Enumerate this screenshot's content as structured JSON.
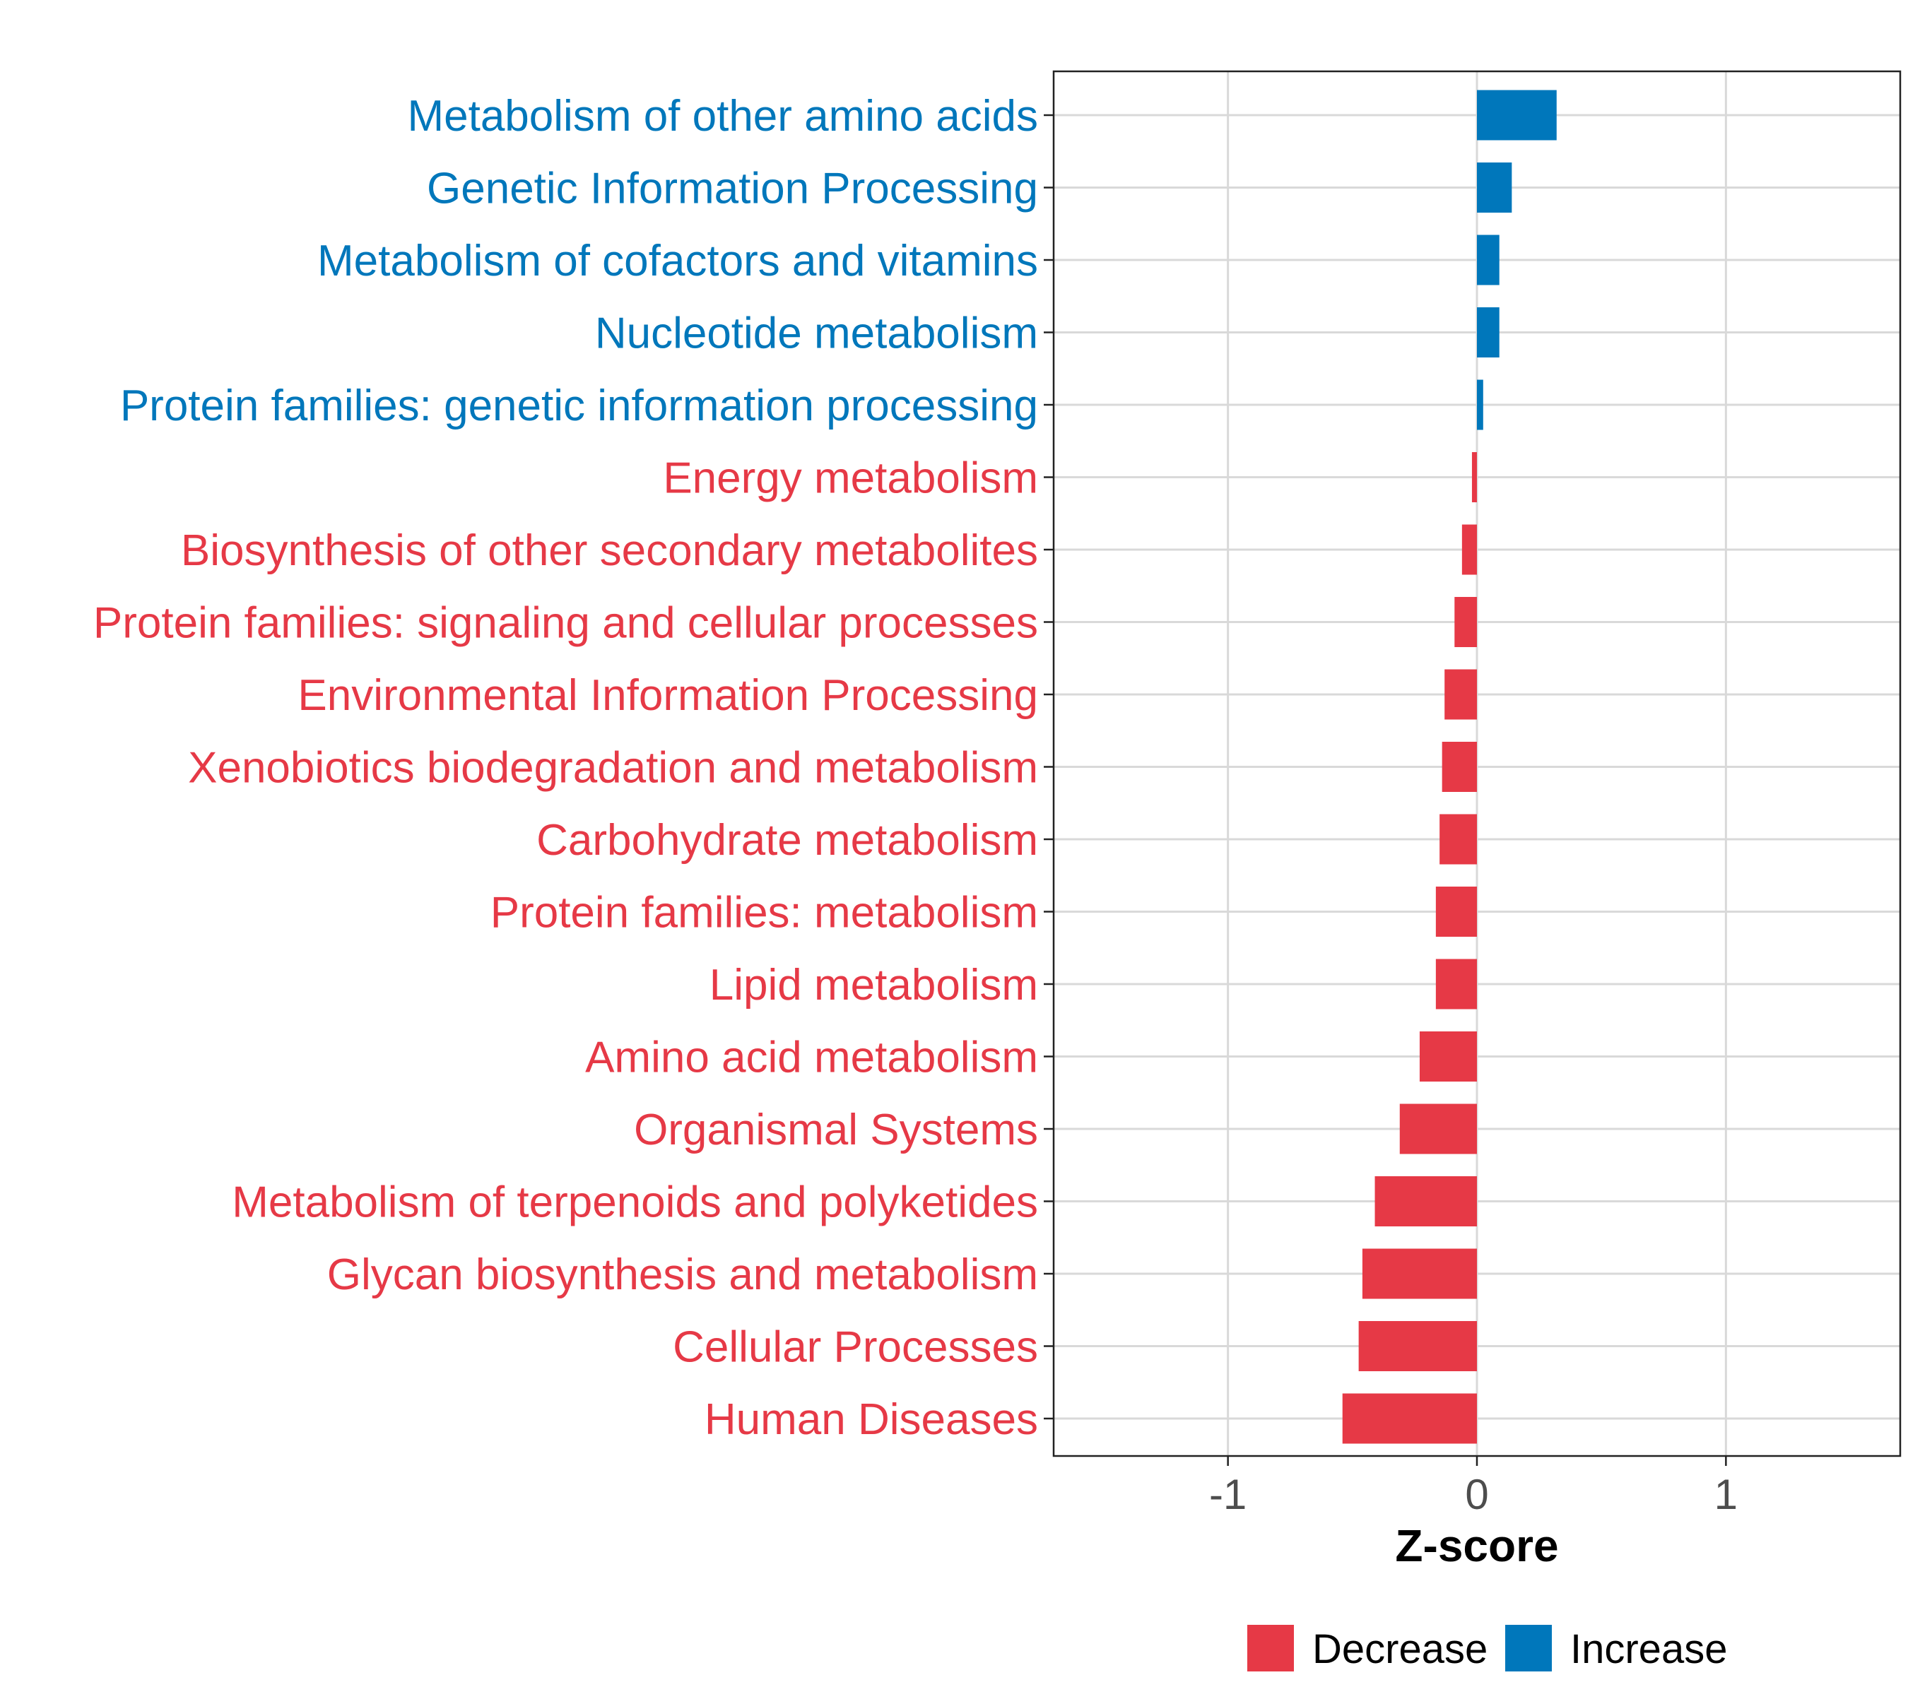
{
  "chart_data": {
    "type": "bar",
    "orientation": "horizontal",
    "xlabel": "Z-score",
    "ylabel": "",
    "xlim": [
      -1.7,
      1.7
    ],
    "xticks": [
      -1,
      0,
      1
    ],
    "xtick_labels": [
      "-1",
      "0",
      "1"
    ],
    "grid": true,
    "legend_position": "bottom",
    "categories": [
      "Metabolism of other amino acids",
      "Genetic Information Processing",
      "Metabolism of cofactors and vitamins",
      "Nucleotide metabolism",
      "Protein families: genetic information processing",
      "Energy metabolism",
      "Biosynthesis of other secondary metabolites",
      "Protein families: signaling and cellular processes",
      "Environmental Information Processing",
      "Xenobiotics biodegradation and metabolism",
      "Carbohydrate metabolism",
      "Protein families: metabolism",
      "Lipid metabolism",
      "Amino acid metabolism",
      "Organismal Systems",
      "Metabolism of terpenoids and polyketides",
      "Glycan biosynthesis and metabolism",
      "Cellular Processes",
      "Human Diseases"
    ],
    "values": [
      0.32,
      0.14,
      0.09,
      0.09,
      0.025,
      -0.02,
      -0.06,
      -0.09,
      -0.13,
      -0.14,
      -0.15,
      -0.165,
      -0.165,
      -0.23,
      -0.31,
      -0.41,
      -0.46,
      -0.475,
      -0.54
    ],
    "groups": [
      "Increase",
      "Increase",
      "Increase",
      "Increase",
      "Increase",
      "Decrease",
      "Decrease",
      "Decrease",
      "Decrease",
      "Decrease",
      "Decrease",
      "Decrease",
      "Decrease",
      "Decrease",
      "Decrease",
      "Decrease",
      "Decrease",
      "Decrease",
      "Decrease"
    ],
    "legend": [
      {
        "label": "Decrease",
        "color": "#e63946"
      },
      {
        "label": "Increase",
        "color": "#0077bb"
      }
    ],
    "colors": {
      "Decrease": "#e63946",
      "Increase": "#0077bb",
      "grid": "#d9d9d9",
      "axis": "#222222",
      "tick_label": "#4d4d4d"
    }
  }
}
